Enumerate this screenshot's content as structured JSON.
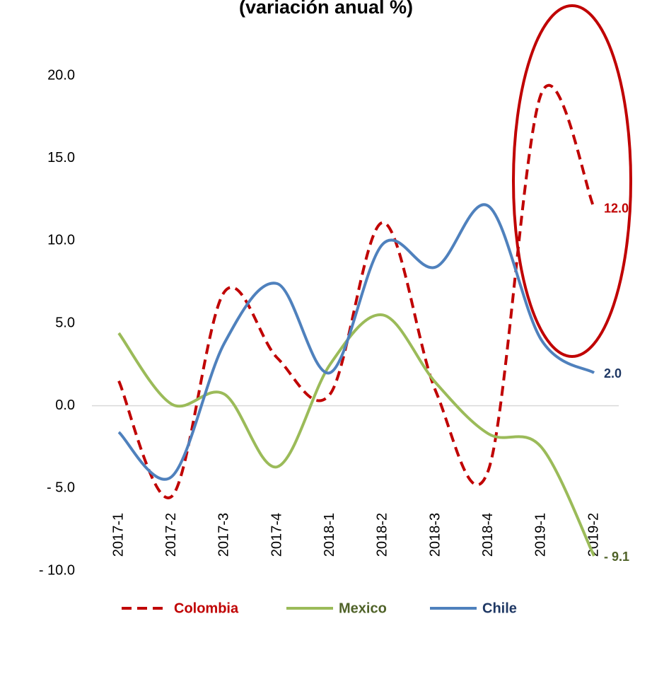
{
  "chart_data": {
    "type": "line",
    "title": "(variación anual %)",
    "categories": [
      "2017-1",
      "2017-2",
      "2017-3",
      "2017-4",
      "2018-1",
      "2018-2",
      "2018-3",
      "2018-4",
      "2019-1",
      "2019-2"
    ],
    "series": [
      {
        "name": "Colombia",
        "color": "#c00000",
        "dashed": true,
        "label_color": "#c00000",
        "values": [
          1.5,
          -5.5,
          6.9,
          2.9,
          0.7,
          11.1,
          0.9,
          -3.9,
          18.9,
          12.0
        ],
        "value_labels": [
          null,
          null,
          null,
          null,
          null,
          null,
          null,
          null,
          null,
          "12.0"
        ]
      },
      {
        "name": "Mexico",
        "color": "#9bbb59",
        "dashed": false,
        "label_color": "#4f6228",
        "values": [
          4.4,
          0.1,
          0.7,
          -3.7,
          2.5,
          5.5,
          1.4,
          -1.7,
          -2.5,
          -9.1
        ],
        "value_labels": [
          null,
          null,
          null,
          null,
          null,
          null,
          null,
          null,
          null,
          "- 9.1"
        ]
      },
      {
        "name": "Chile",
        "color": "#4f81bd",
        "dashed": false,
        "label_color": "#1f3864",
        "values": [
          -1.6,
          -4.3,
          3.8,
          7.4,
          2.0,
          9.8,
          8.4,
          12.1,
          4.0,
          2.0
        ],
        "value_labels": [
          null,
          null,
          null,
          null,
          null,
          null,
          null,
          null,
          null,
          "2.0"
        ]
      }
    ],
    "ylim": [
      -10,
      20
    ],
    "yticks": [
      {
        "value": -10,
        "label": "- 10.0"
      },
      {
        "value": -5,
        "label": "- 5.0"
      },
      {
        "value": 0,
        "label": "0.0"
      },
      {
        "value": 5,
        "label": "5.0"
      },
      {
        "value": 10,
        "label": "10.0"
      },
      {
        "value": 15,
        "label": "15.0"
      },
      {
        "value": 20,
        "label": "20.0"
      }
    ],
    "grid": false,
    "legend": "bottom"
  }
}
